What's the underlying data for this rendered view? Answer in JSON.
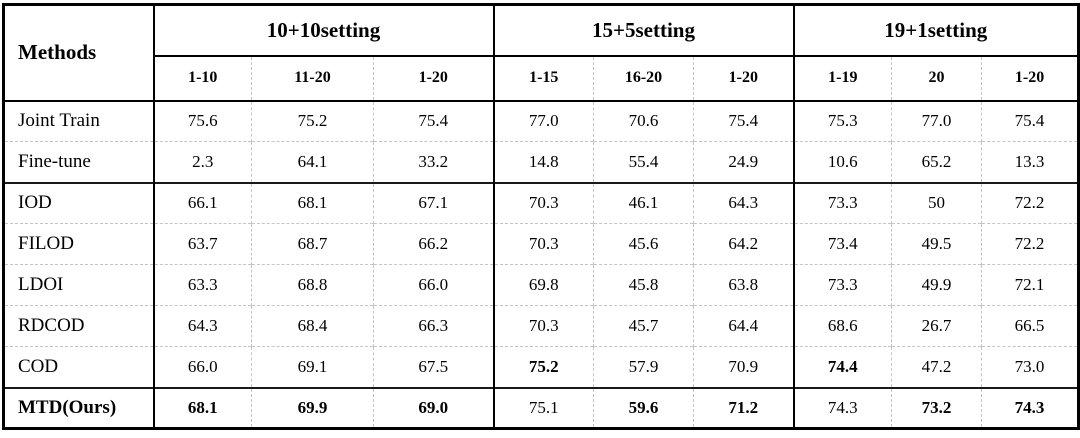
{
  "table": {
    "methods_header": "Methods",
    "groups": [
      {
        "label": "10+10setting",
        "sub": [
          "1-10",
          "11-20",
          "1-20"
        ]
      },
      {
        "label": "15+5setting",
        "sub": [
          "1-15",
          "16-20",
          "1-20"
        ]
      },
      {
        "label": "19+1setting",
        "sub": [
          "1-19",
          "20",
          "1-20"
        ]
      }
    ],
    "rows": [
      {
        "method": "Joint Train",
        "method_bold": false,
        "rule_above": false,
        "values": [
          "75.6",
          "75.2",
          "75.4",
          "77.0",
          "70.6",
          "75.4",
          "75.3",
          "77.0",
          "75.4"
        ],
        "bold": [
          false,
          false,
          false,
          false,
          false,
          false,
          false,
          false,
          false
        ]
      },
      {
        "method": "Fine-tune",
        "method_bold": false,
        "rule_above": false,
        "values": [
          "2.3",
          "64.1",
          "33.2",
          "14.8",
          "55.4",
          "24.9",
          "10.6",
          "65.2",
          "13.3"
        ],
        "bold": [
          false,
          false,
          false,
          false,
          false,
          false,
          false,
          false,
          false
        ]
      },
      {
        "method": "IOD",
        "method_bold": false,
        "rule_above": true,
        "values": [
          "66.1",
          "68.1",
          "67.1",
          "70.3",
          "46.1",
          "64.3",
          "73.3",
          "50",
          "72.2"
        ],
        "bold": [
          false,
          false,
          false,
          false,
          false,
          false,
          false,
          false,
          false
        ]
      },
      {
        "method": "FILOD",
        "method_bold": false,
        "rule_above": false,
        "values": [
          "63.7",
          "68.7",
          "66.2",
          "70.3",
          "45.6",
          "64.2",
          "73.4",
          "49.5",
          "72.2"
        ],
        "bold": [
          false,
          false,
          false,
          false,
          false,
          false,
          false,
          false,
          false
        ]
      },
      {
        "method": "LDOI",
        "method_bold": false,
        "rule_above": false,
        "values": [
          "63.3",
          "68.8",
          "66.0",
          "69.8",
          "45.8",
          "63.8",
          "73.3",
          "49.9",
          "72.1"
        ],
        "bold": [
          false,
          false,
          false,
          false,
          false,
          false,
          false,
          false,
          false
        ]
      },
      {
        "method": "RDCOD",
        "method_bold": false,
        "rule_above": false,
        "values": [
          "64.3",
          "68.4",
          "66.3",
          "70.3",
          "45.7",
          "64.4",
          "68.6",
          "26.7",
          "66.5"
        ],
        "bold": [
          false,
          false,
          false,
          false,
          false,
          false,
          false,
          false,
          false
        ]
      },
      {
        "method": "COD",
        "method_bold": false,
        "rule_above": false,
        "values": [
          "66.0",
          "69.1",
          "67.5",
          "75.2",
          "57.9",
          "70.9",
          "74.4",
          "47.2",
          "73.0"
        ],
        "bold": [
          false,
          false,
          false,
          true,
          false,
          false,
          true,
          false,
          false
        ]
      },
      {
        "method": "MTD(Ours)",
        "method_bold": true,
        "rule_above": true,
        "values": [
          "68.1",
          "69.9",
          "69.0",
          "75.1",
          "59.6",
          "71.2",
          "74.3",
          "73.2",
          "74.3"
        ],
        "bold": [
          true,
          true,
          true,
          false,
          true,
          true,
          false,
          true,
          true
        ]
      }
    ]
  },
  "colors": {
    "table_border": "#000000",
    "dashed_divider": "#c5c5c5",
    "text": "#000000",
    "background": "#ffffff"
  }
}
